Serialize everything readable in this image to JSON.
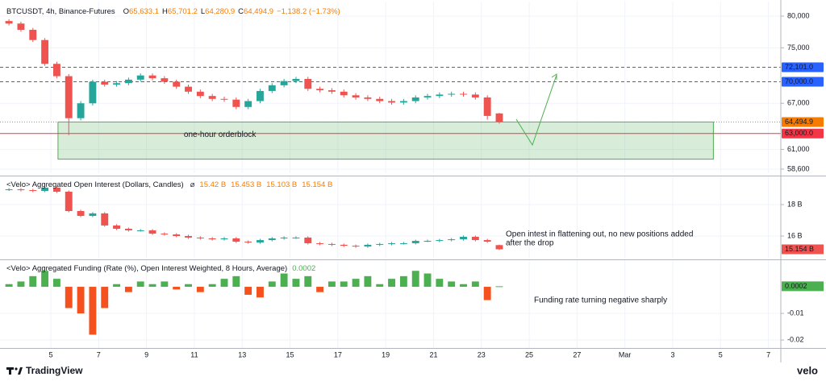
{
  "footer": {
    "brand": "TradingView",
    "source": "velo"
  },
  "chart_data": [
    {
      "type": "candlestick",
      "title": "BTCUSDT, 4h, Binance-Futures",
      "header_keys": [
        "O",
        "H",
        "L",
        "C"
      ],
      "last_labels": [
        "65,633.1",
        "65,701.2",
        "64,280.9",
        "64,494.9"
      ],
      "change_label": "−1,138.2 (−1.73%)",
      "log_scale": true,
      "grid": true,
      "up_color": "#26a69a",
      "down_color": "#ef5350",
      "x": [
        3.25,
        3.75,
        4.25,
        4.75,
        5.25,
        5.75,
        6.25,
        6.75,
        7.25,
        7.75,
        8.25,
        8.75,
        9.25,
        9.75,
        10.25,
        10.75,
        11.25,
        11.75,
        12.25,
        12.75,
        13.25,
        13.75,
        14.25,
        14.75,
        15.25,
        15.75,
        16.25,
        16.75,
        17.25,
        17.75,
        18.25,
        18.75,
        19.25,
        19.75,
        20.25,
        20.75,
        21.25,
        21.75,
        22.25,
        22.75,
        23.25,
        23.75
      ],
      "open": [
        79200,
        78800,
        77800,
        76200,
        72600,
        70800,
        65000,
        67000,
        70000,
        69600,
        69800,
        70300,
        70900,
        70500,
        70000,
        69300,
        68600,
        68000,
        67600,
        67500,
        66500,
        67300,
        68700,
        69500,
        70100,
        70400,
        69000,
        68800,
        68600,
        68100,
        67800,
        67600,
        67300,
        67100,
        67300,
        67800,
        68000,
        68200,
        68300,
        68200,
        67800,
        65633.1
      ],
      "high": [
        79500,
        79100,
        78100,
        76500,
        72900,
        71100,
        67300,
        70300,
        70300,
        70100,
        70600,
        71200,
        71200,
        70800,
        70300,
        69600,
        68900,
        68300,
        67900,
        67800,
        67600,
        69000,
        69800,
        70400,
        70700,
        70700,
        69300,
        69100,
        68900,
        68400,
        68100,
        67900,
        67600,
        67600,
        68100,
        68300,
        68500,
        68600,
        68600,
        68500,
        68100,
        65701.2
      ],
      "low": [
        78500,
        77500,
        75900,
        72300,
        70500,
        62800,
        64700,
        66700,
        69300,
        69300,
        69500,
        70000,
        70200,
        69700,
        69000,
        68300,
        67700,
        67300,
        67200,
        66200,
        66200,
        67000,
        68400,
        69200,
        69800,
        68700,
        68500,
        68300,
        67800,
        67500,
        67300,
        67000,
        66800,
        66800,
        67000,
        67500,
        67700,
        67900,
        67900,
        67500,
        64800,
        64280.9
      ],
      "close": [
        78800,
        77800,
        76200,
        72600,
        70800,
        65000,
        67000,
        70000,
        69600,
        69800,
        70300,
        70900,
        70500,
        70000,
        69300,
        68600,
        68000,
        67600,
        67500,
        66500,
        67300,
        68700,
        69500,
        70100,
        70400,
        69000,
        68800,
        68600,
        68100,
        67800,
        67600,
        67300,
        67100,
        67300,
        67800,
        68000,
        68200,
        68300,
        68200,
        67800,
        65300,
        64494.9
      ],
      "ylim": [
        58120,
        81990
      ],
      "yticks": [
        {
          "value": 58600,
          "label": "58,600"
        },
        {
          "value": 61000,
          "label": "61,000"
        },
        {
          "value": 67000,
          "label": "67,000"
        },
        {
          "value": 75000,
          "label": "75,000"
        },
        {
          "value": 80000,
          "label": "80,000"
        }
      ],
      "levels": [
        {
          "value": 72101,
          "label": "72,101.0",
          "color": "#2962ff",
          "style": "dashed"
        },
        {
          "value": 70000,
          "label": "70,000.0",
          "color": "#2962ff",
          "style": "dashed"
        },
        {
          "value": 64494.9,
          "label": "64,494.9",
          "color": "#f57c00",
          "style": "dotted"
        },
        {
          "value": 63000,
          "label": "63,000.0",
          "color": "#f23645",
          "style": "solid"
        }
      ],
      "zone": {
        "label": "one-hour orderblock",
        "x": [
          5.3,
          32.7
        ],
        "y": [
          59800,
          64500
        ],
        "color": "#4caf50"
      }
    },
    {
      "type": "candlestick",
      "title": "<Velo> Aggregated Open Interest (Dollars, Candles)",
      "symbol": "⌀",
      "last_labels": [
        "15.42 B",
        "15.453 B",
        "15.103 B",
        "15.154 B"
      ],
      "grid": true,
      "up_color": "#26a69a",
      "down_color": "#ef5350",
      "x": [
        3.25,
        3.75,
        4.25,
        4.75,
        5.25,
        5.75,
        6.25,
        6.75,
        7.25,
        7.75,
        8.25,
        8.75,
        9.25,
        9.75,
        10.25,
        10.75,
        11.25,
        11.75,
        12.25,
        12.75,
        13.25,
        13.75,
        14.25,
        14.75,
        15.25,
        15.75,
        16.25,
        16.75,
        17.25,
        17.75,
        18.25,
        18.75,
        19.25,
        19.75,
        20.25,
        20.75,
        21.25,
        21.75,
        22.25,
        22.75,
        23.25,
        23.75
      ],
      "open": [
        18.95,
        18.97,
        18.92,
        18.87,
        19.08,
        18.82,
        17.59,
        17.28,
        17.44,
        16.67,
        16.46,
        16.36,
        16.36,
        16.15,
        16.1,
        16.0,
        15.9,
        15.85,
        15.79,
        15.85,
        15.64,
        15.59,
        15.74,
        15.85,
        15.9,
        15.9,
        15.54,
        15.49,
        15.44,
        15.38,
        15.33,
        15.44,
        15.49,
        15.54,
        15.54,
        15.69,
        15.69,
        15.74,
        15.79,
        15.95,
        15.74,
        15.42
      ],
      "high": [
        19.05,
        19.05,
        19.0,
        19.16,
        19.16,
        18.9,
        17.67,
        17.52,
        17.52,
        16.75,
        16.54,
        16.44,
        16.44,
        16.23,
        16.18,
        16.08,
        15.98,
        15.93,
        15.93,
        15.93,
        15.72,
        15.82,
        15.93,
        15.98,
        15.98,
        15.98,
        15.62,
        15.57,
        15.52,
        15.46,
        15.52,
        15.57,
        15.62,
        15.62,
        15.77,
        15.77,
        15.82,
        15.87,
        16.03,
        16.03,
        15.82,
        15.453
      ],
      "low": [
        18.87,
        18.84,
        18.79,
        18.79,
        18.74,
        17.51,
        17.2,
        17.2,
        16.59,
        16.38,
        16.28,
        16.28,
        16.07,
        16.02,
        15.92,
        15.82,
        15.77,
        15.71,
        15.71,
        15.56,
        15.51,
        15.51,
        15.66,
        15.77,
        15.82,
        15.46,
        15.41,
        15.36,
        15.3,
        15.25,
        15.25,
        15.36,
        15.41,
        15.46,
        15.46,
        15.61,
        15.61,
        15.66,
        15.71,
        15.66,
        15.56,
        15.103
      ],
      "close": [
        18.97,
        18.92,
        18.87,
        19.08,
        18.82,
        17.59,
        17.28,
        17.44,
        16.67,
        16.46,
        16.36,
        16.36,
        16.15,
        16.1,
        16.0,
        15.9,
        15.85,
        15.79,
        15.85,
        15.64,
        15.59,
        15.74,
        15.85,
        15.9,
        15.9,
        15.54,
        15.49,
        15.44,
        15.38,
        15.33,
        15.44,
        15.49,
        15.54,
        15.54,
        15.69,
        15.69,
        15.74,
        15.79,
        15.95,
        15.74,
        15.64,
        15.154
      ],
      "ylim": [
        14.615,
        19.64
      ],
      "yticks": [
        {
          "value": 16,
          "label": "16 B"
        },
        {
          "value": 18,
          "label": "18 B"
        }
      ],
      "annotation": [
        "Open intest in flattening out, no new positions added",
        "after the drop"
      ]
    },
    {
      "type": "bar",
      "title": "<Velo> Aggregated Funding (Rate (%), Open Interest Weighted, 8 Hours, Average)",
      "grid": true,
      "positive_color": "#4caf50",
      "negative_color": "#f4511e",
      "x": [
        3.25,
        3.75,
        4.25,
        4.75,
        5.25,
        5.75,
        6.25,
        6.75,
        7.25,
        7.75,
        8.25,
        8.75,
        9.25,
        9.75,
        10.25,
        10.75,
        11.25,
        11.75,
        12.25,
        12.75,
        13.25,
        13.75,
        14.25,
        14.75,
        15.25,
        15.75,
        16.25,
        16.75,
        17.25,
        17.75,
        18.25,
        18.75,
        19.25,
        19.75,
        20.25,
        20.75,
        21.25,
        21.75,
        22.25,
        22.75,
        23.25,
        23.75
      ],
      "values": [
        0.001,
        0.002,
        0.004,
        0.006,
        0.003,
        -0.008,
        -0.01,
        -0.018,
        -0.008,
        0.001,
        -0.002,
        0.002,
        0.001,
        0.002,
        -0.001,
        0.001,
        -0.002,
        0.001,
        0.003,
        0.004,
        -0.003,
        -0.004,
        0.002,
        0.005,
        0.003,
        0.004,
        -0.002,
        0.002,
        0.002,
        0.003,
        0.004,
        0.001,
        0.003,
        0.004,
        0.006,
        0.005,
        0.003,
        0.002,
        0.001,
        0.002,
        -0.005,
        0.0002
      ],
      "ylim": [
        -0.023,
        0.0094
      ],
      "yticks": [
        -0.02,
        -0.01
      ],
      "annotation": [
        "Funding rate turning negative sharply"
      ],
      "xlim": [
        2.875,
        35.52
      ],
      "xticks": [
        5,
        7,
        9,
        11,
        13,
        15,
        17,
        19,
        21,
        23,
        25,
        27,
        {
          "value": 29,
          "label": "Mar"
        },
        {
          "value": 31,
          "label": "3"
        },
        {
          "value": 33,
          "label": "5"
        },
        {
          "value": 35,
          "label": "7"
        }
      ]
    }
  ]
}
